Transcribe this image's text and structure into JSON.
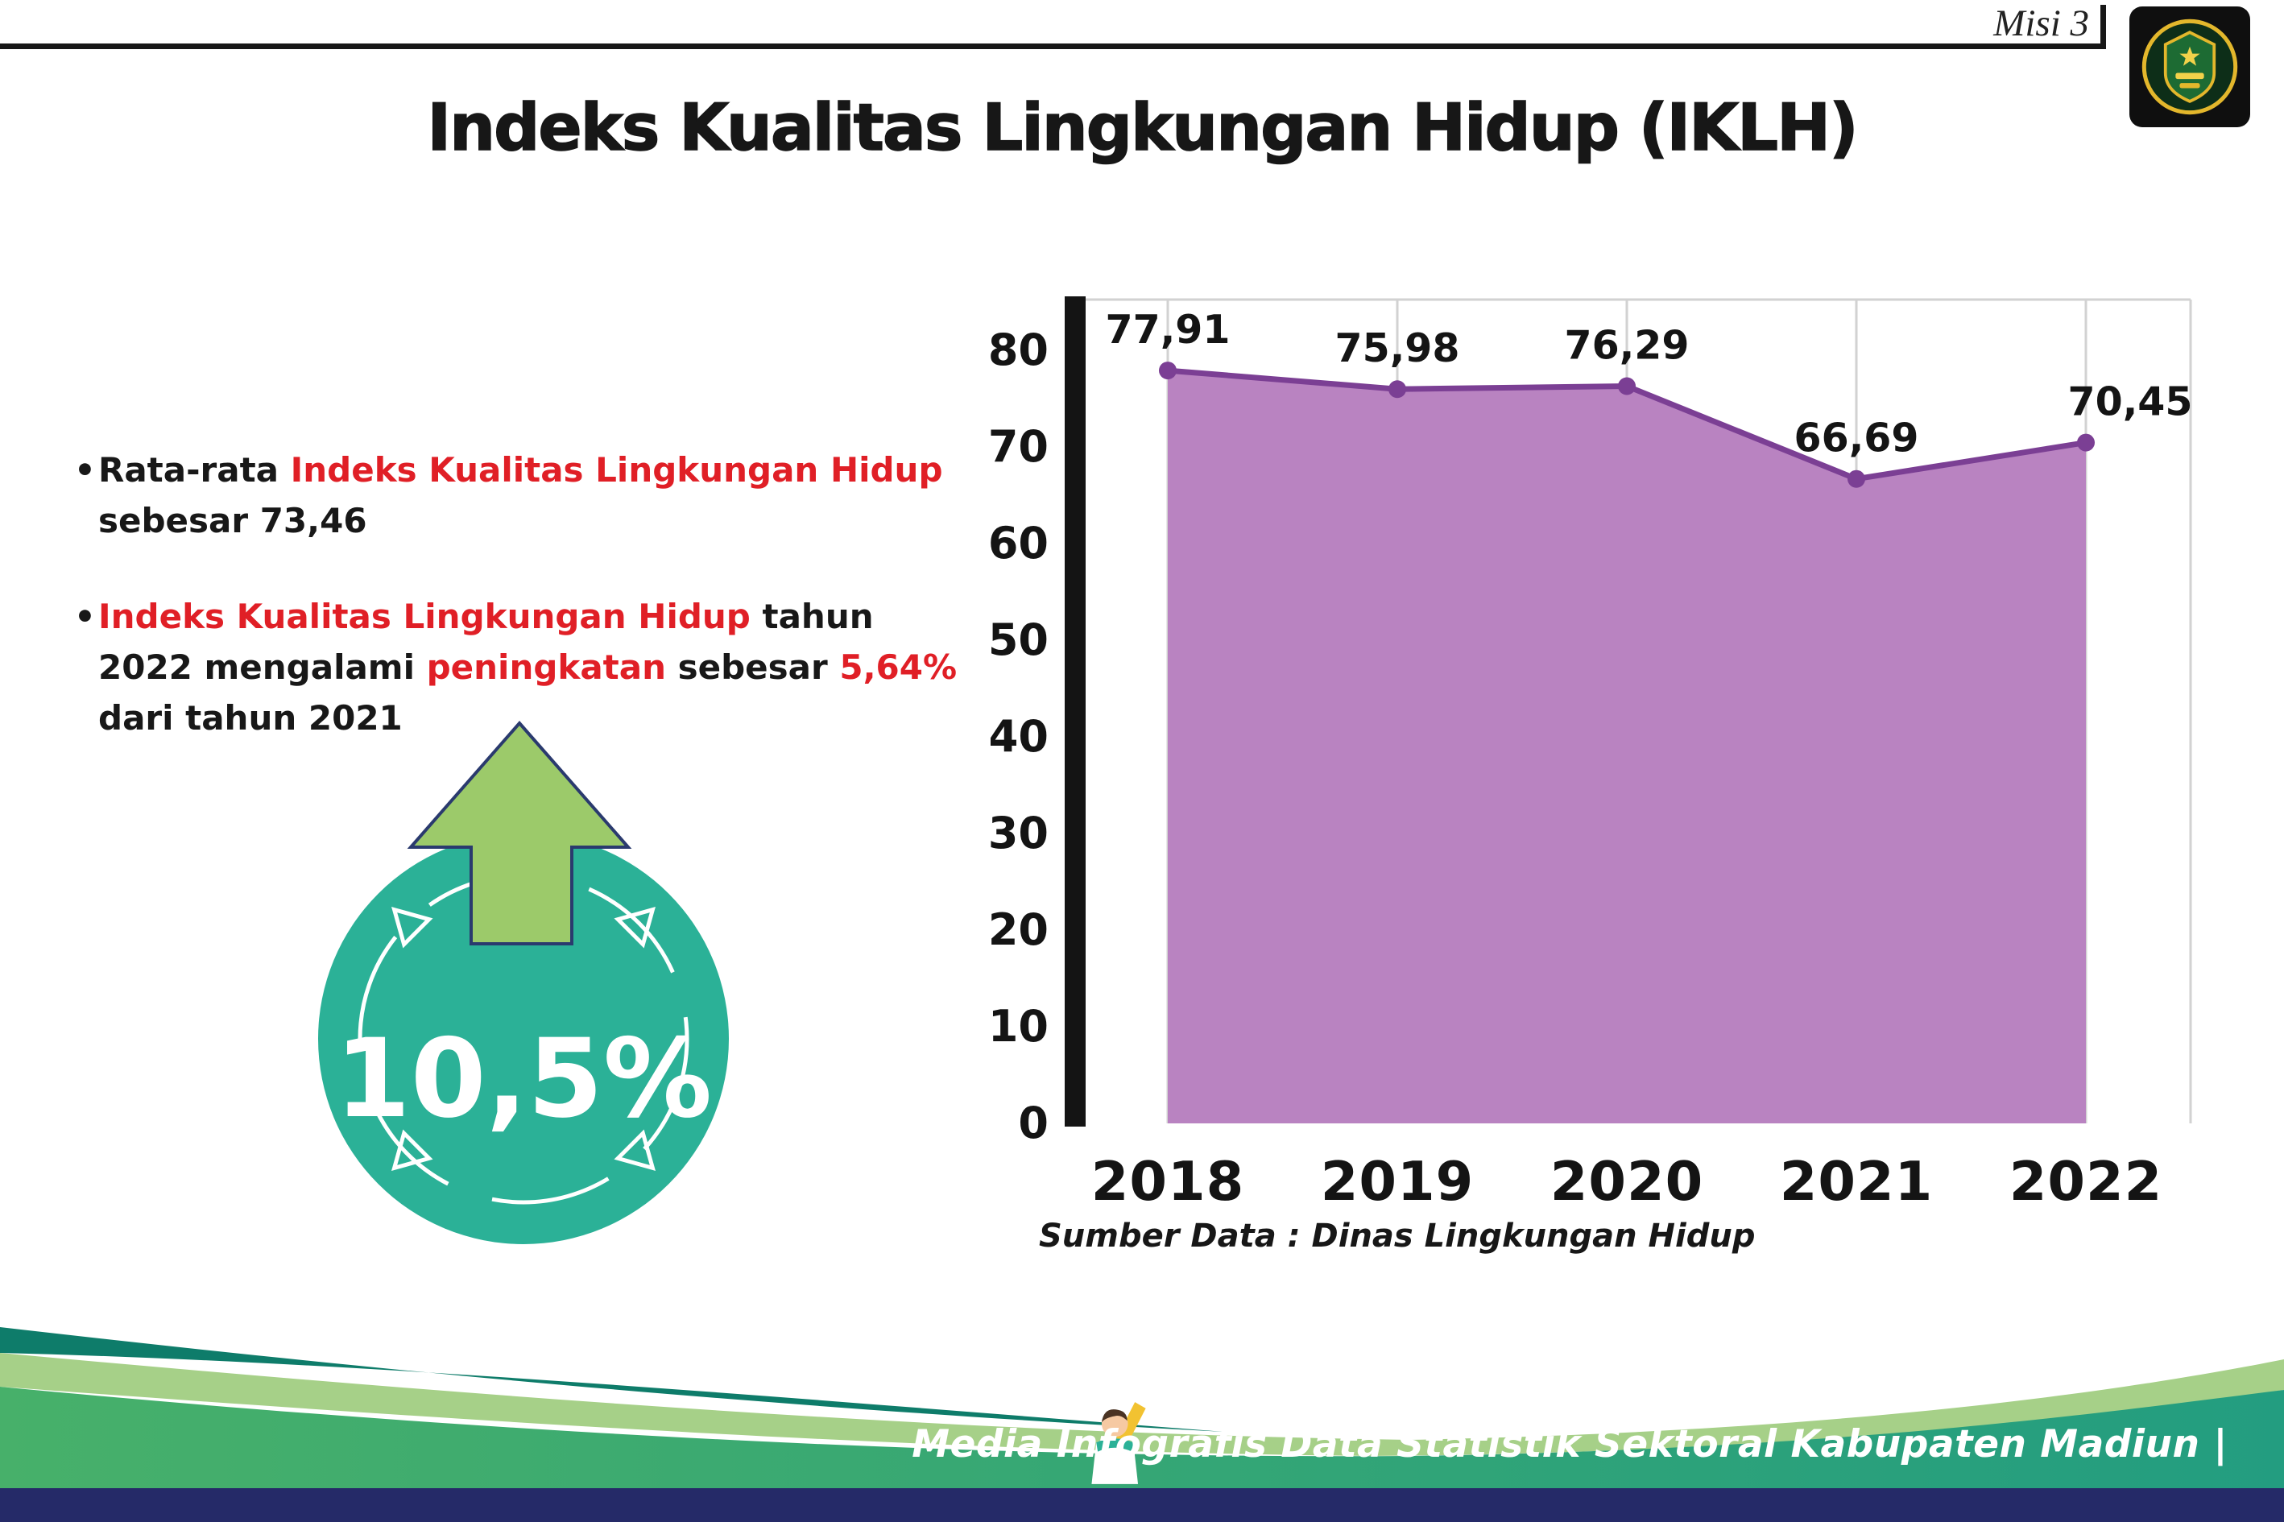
{
  "colors": {
    "red": "#e01f26",
    "dark": "#181818",
    "badge_teal": "#2bb197",
    "arrow_green": "#9cca6a",
    "footer_teal": "#0e7c6a",
    "footer_light_green": "#a6d088",
    "footer_green_1": "#47b06a",
    "footer_green_2": "#239d80",
    "footer_navy": "#252a68"
  },
  "header": {
    "misi_label": "Misi 3",
    "title": "Indeks Kualitas Lingkungan Hidup (IKLH)"
  },
  "left_panel": {
    "bullets": [
      {
        "marker": "•",
        "segments": [
          {
            "t": "Rata-rata ",
            "c": "dark"
          },
          {
            "t": "Indeks Kualitas Lingkungan Hidup",
            "c": "red"
          },
          {
            "t": " sebesar 73,46",
            "c": "dark"
          }
        ]
      },
      {
        "marker": "•",
        "segments": [
          {
            "t": "Indeks Kualitas Lingkungan Hidup",
            "c": "red"
          },
          {
            "t": " tahun 2022 mengalami ",
            "c": "dark"
          },
          {
            "t": "peningkatan",
            "c": "red"
          },
          {
            "t": " sebesar ",
            "c": "dark"
          },
          {
            "t": "5,64%",
            "c": "red"
          },
          {
            "t": " dari tahun 2021",
            "c": "dark"
          }
        ]
      }
    ],
    "badge_value": "10,5%"
  },
  "chart_data": {
    "type": "area",
    "title": "Indeks Kualitas Lingkungan Hidup (IKLH)",
    "categories": [
      "2018",
      "2019",
      "2020",
      "2021",
      "2022"
    ],
    "values": [
      77.91,
      75.98,
      76.29,
      66.69,
      70.45
    ],
    "point_labels": [
      "77,91",
      "75,98",
      "76,29",
      "66,69",
      "70,45"
    ],
    "xlabel": "",
    "ylabel": "",
    "ylim": [
      0,
      80
    ],
    "yticks": [
      0,
      10,
      20,
      30,
      40,
      50,
      60,
      70,
      80
    ],
    "grid": "vertical-light",
    "legend": "none",
    "colors": {
      "area": "#b983c1",
      "line": "#7b3f94"
    },
    "source": "Sumber Data : Dinas Lingkungan Hidup"
  },
  "footer": {
    "text": "Media Infografis Data Statistik Sektoral Kabupaten Madiun |"
  }
}
